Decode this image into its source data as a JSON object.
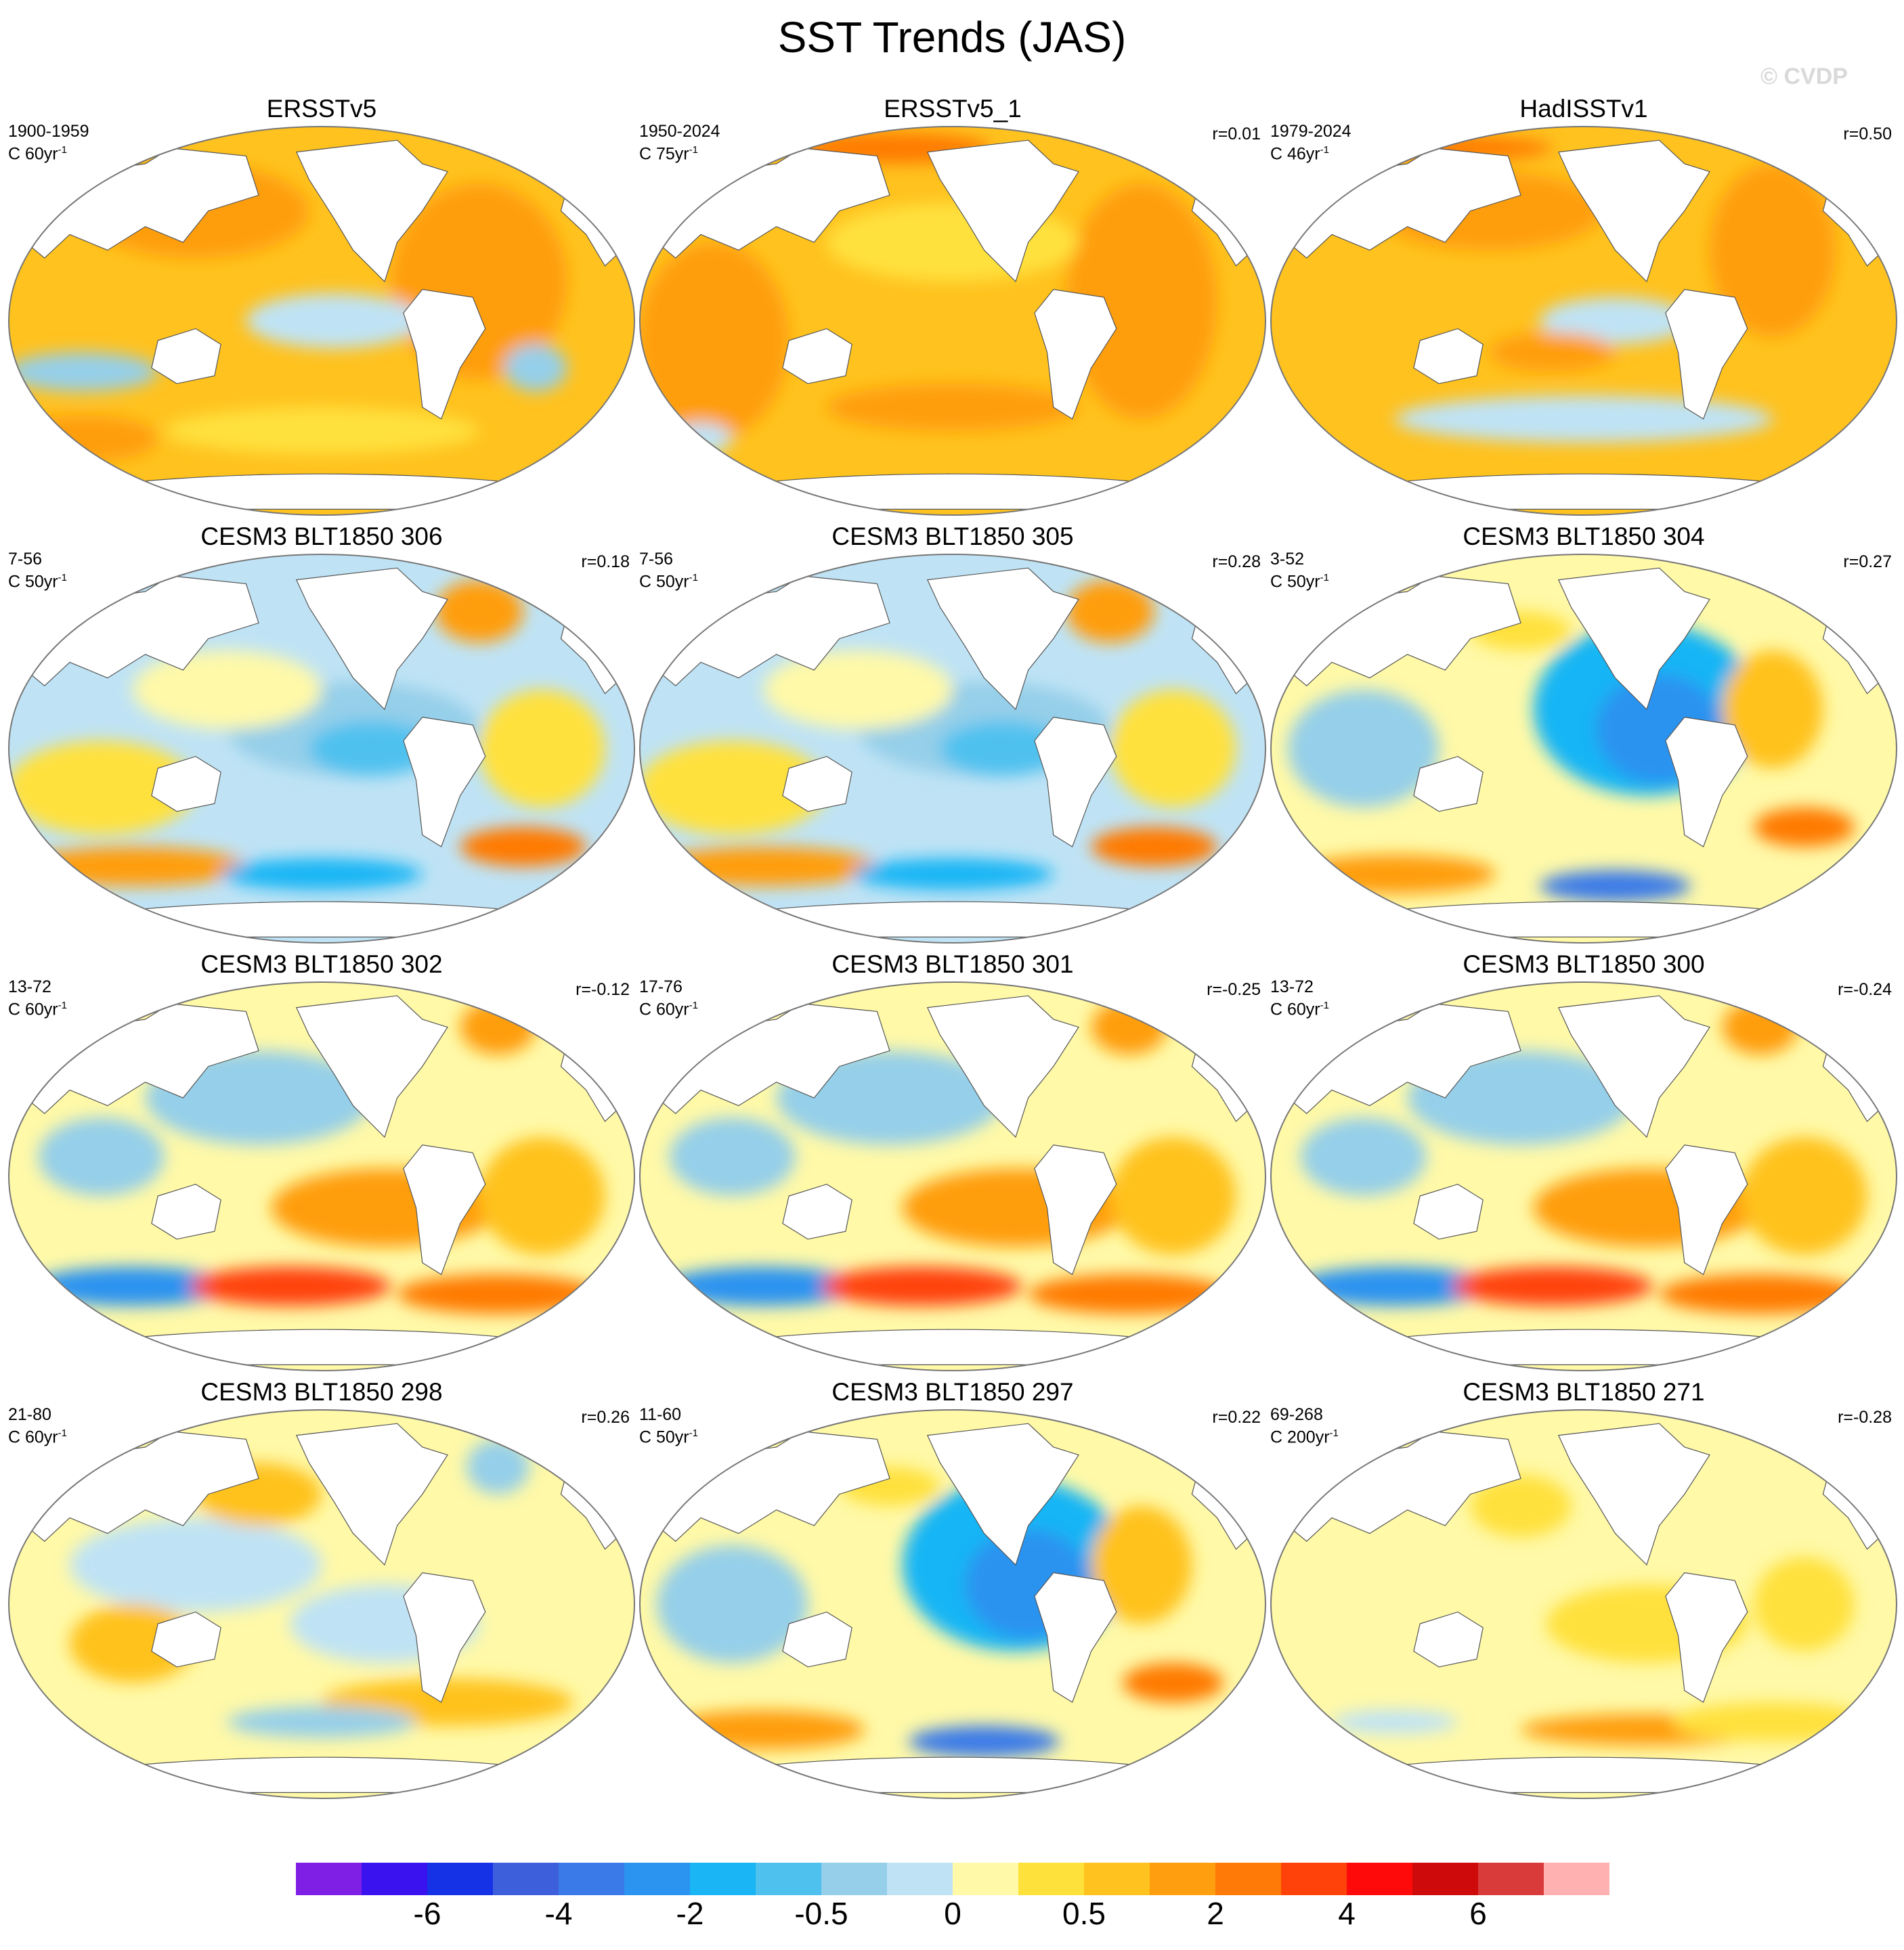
{
  "figure": {
    "title": "SST Trends (JAS)",
    "copyright": "© CVDP"
  },
  "panels": [
    {
      "title": "ERSSTv5",
      "period": "1900-1959",
      "units": "C 60yr",
      "units_exp": "-1",
      "corr": "",
      "pattern": "warm_obs1"
    },
    {
      "title": "ERSSTv5_1",
      "period": "1950-2024",
      "units": "C 75yr",
      "units_exp": "-1",
      "corr": "r=0.01",
      "pattern": "warm_obs2"
    },
    {
      "title": "HadISSTv1",
      "period": "1979-2024",
      "units": "C 46yr",
      "units_exp": "-1",
      "corr": "r=0.50",
      "pattern": "warm_obs3"
    },
    {
      "title": "CESM3 BLT1850 306",
      "period": "7-56",
      "units": "C 50yr",
      "units_exp": "-1",
      "corr": "r=0.18",
      "pattern": "mixed_cool"
    },
    {
      "title": "CESM3 BLT1850 305",
      "period": "7-56",
      "units": "C 50yr",
      "units_exp": "-1",
      "corr": "r=0.28",
      "pattern": "mixed_cool"
    },
    {
      "title": "CESM3 BLT1850 304",
      "period": "3-52",
      "units": "C 50yr",
      "units_exp": "-1",
      "corr": "r=0.27",
      "pattern": "cool_pacific"
    },
    {
      "title": "CESM3 BLT1850 302",
      "period": "13-72",
      "units": "C 60yr",
      "units_exp": "-1",
      "corr": "r=-0.12",
      "pattern": "mixed_warm"
    },
    {
      "title": "CESM3 BLT1850 301",
      "period": "17-76",
      "units": "C 60yr",
      "units_exp": "-1",
      "corr": "r=-0.25",
      "pattern": "mixed_warm"
    },
    {
      "title": "CESM3 BLT1850 300",
      "period": "13-72",
      "units": "C 60yr",
      "units_exp": "-1",
      "corr": "r=-0.24",
      "pattern": "mixed_warm"
    },
    {
      "title": "CESM3 BLT1850 298",
      "period": "21-80",
      "units": "C 60yr",
      "units_exp": "-1",
      "corr": "r=0.26",
      "pattern": "mixed_neutral"
    },
    {
      "title": "CESM3 BLT1850 297",
      "period": "11-60",
      "units": "C 50yr",
      "units_exp": "-1",
      "corr": "r=0.22",
      "pattern": "cool_pacific"
    },
    {
      "title": "CESM3 BLT1850 271",
      "period": "69-268",
      "units": "C 200yr",
      "units_exp": "-1",
      "corr": "r=-0.28",
      "pattern": "pale_warm"
    }
  ],
  "colorbar": {
    "colors": [
      "#7f1fe6",
      "#3a12f0",
      "#1632e6",
      "#3e5fdc",
      "#3a7ae8",
      "#2b93f0",
      "#19b5f5",
      "#4fc1ef",
      "#95cfe9",
      "#bfe3f5",
      "#fff9a8",
      "#ffe13c",
      "#ffc21e",
      "#ff9e0e",
      "#ff7a06",
      "#ff420a",
      "#ff0a0a",
      "#cf0a0a",
      "#d93a3a",
      "#ffb0b0"
    ],
    "labels": [
      "-6",
      "-4",
      "-2",
      "-0.5",
      "0",
      "0.5",
      "2",
      "4",
      "6"
    ]
  }
}
